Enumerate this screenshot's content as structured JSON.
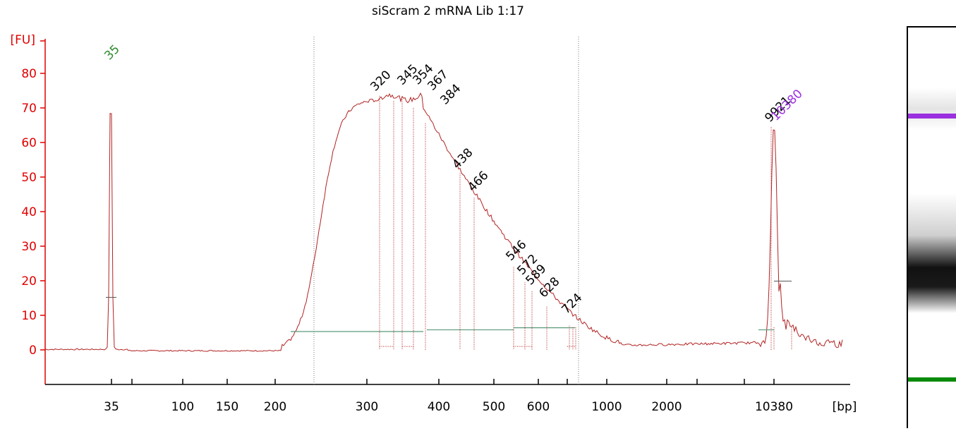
{
  "chart_data": {
    "type": "line",
    "title": "siScram 2 mRNA Lib 1:17",
    "ylabel": "[FU]",
    "xlabel": "[bp]",
    "y_ticks": [
      0,
      10,
      20,
      30,
      40,
      50,
      60,
      70,
      80
    ],
    "ylim": [
      -10,
      92
    ],
    "x_tick_labels": [
      "35",
      "100",
      "150",
      "200",
      "300",
      "400",
      "500",
      "600",
      "1000",
      "2000",
      "10380"
    ],
    "lower_marker": {
      "size": "35",
      "fu": 82.5,
      "color": "#2e8b2e"
    },
    "upper_marker": {
      "size": "10380",
      "fu": 64.5,
      "color": "#9b30e0"
    },
    "peak_labels": [
      "320",
      "345",
      "354",
      "367",
      "384",
      "438",
      "466",
      "546",
      "572",
      "589",
      "628",
      "724",
      "9921"
    ],
    "region": [
      "200",
      "1000"
    ],
    "line_color": "#b22222",
    "axis_color": "#e00000",
    "baseline_color": "#5a9a7a"
  },
  "gel": {
    "upper_band_color": "#9b30e0",
    "lower_band_color": "#0a8a0a"
  }
}
